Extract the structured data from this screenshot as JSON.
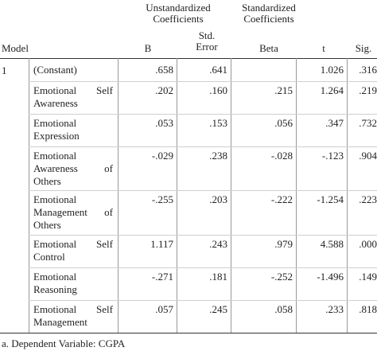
{
  "header": {
    "unstd_line1": "Unstandardized",
    "unstd_line2": "Coefficients",
    "std_line1": "Standardized",
    "std_line2": "Coefficients",
    "model": "Model",
    "b": "B",
    "se_line1": "Std.",
    "se_line2": "Error",
    "beta": "Beta",
    "t": "t",
    "sig": "Sig."
  },
  "model_number": "1",
  "rows": [
    {
      "l1a": "(Constant)",
      "l1b": "",
      "l2a": "",
      "l2b": "",
      "l3a": "",
      "l3b": "",
      "b": ".658",
      "se": ".641",
      "beta": "",
      "t": "1.026",
      "sig": ".316"
    },
    {
      "l1a": "Emotional",
      "l1b": "Self",
      "l2a": "Awareness",
      "l2b": "",
      "l3a": "",
      "l3b": "",
      "b": ".202",
      "se": ".160",
      "beta": ".215",
      "t": "1.264",
      "sig": ".219"
    },
    {
      "l1a": "Emotional",
      "l1b": "",
      "l2a": "Expression",
      "l2b": "",
      "l3a": "",
      "l3b": "",
      "b": ".053",
      "se": ".153",
      "beta": ".056",
      "t": ".347",
      "sig": ".732"
    },
    {
      "l1a": "Emotional",
      "l1b": "",
      "l2a": "Awareness",
      "l2b": "of",
      "l3a": "Others",
      "l3b": "",
      "b": "-.029",
      "se": ".238",
      "beta": "-.028",
      "t": "-.123",
      "sig": ".904"
    },
    {
      "l1a": "Emotional",
      "l1b": "",
      "l2a": "Management",
      "l2b": "of",
      "l3a": "Others",
      "l3b": "",
      "b": "-.255",
      "se": ".203",
      "beta": "-.222",
      "t": "-1.254",
      "sig": ".223"
    },
    {
      "l1a": "Emotional",
      "l1b": "Self",
      "l2a": "Control",
      "l2b": "",
      "l3a": "",
      "l3b": "",
      "b": "1.117",
      "se": ".243",
      "beta": ".979",
      "t": "4.588",
      "sig": ".000"
    },
    {
      "l1a": "Emotional",
      "l1b": "",
      "l2a": "Reasoning",
      "l2b": "",
      "l3a": "",
      "l3b": "",
      "b": "-.271",
      "se": ".181",
      "beta": "-.252",
      "t": "-1.496",
      "sig": ".149"
    },
    {
      "l1a": "Emotional",
      "l1b": "Self",
      "l2a": "Management",
      "l2b": "",
      "l3a": "",
      "l3b": "",
      "b": ".057",
      "se": ".245",
      "beta": ".058",
      "t": ".233",
      "sig": ".818"
    }
  ],
  "footnote": "a. Dependent Variable: CGPA"
}
